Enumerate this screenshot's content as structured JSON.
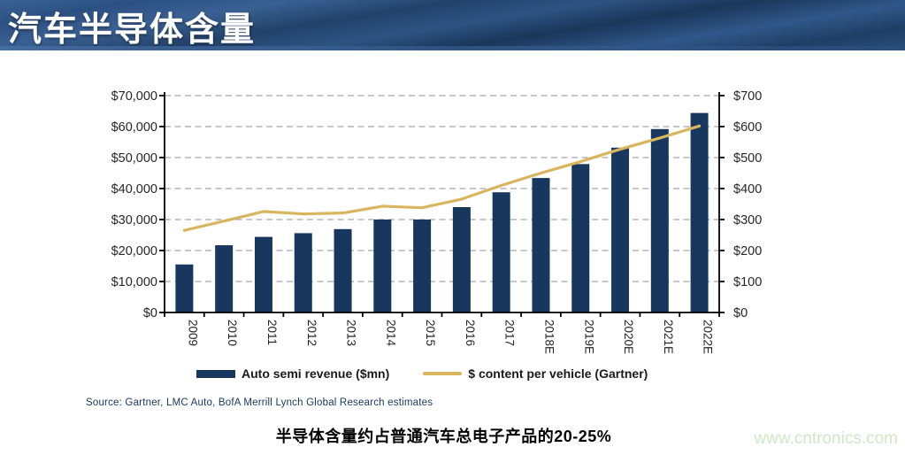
{
  "header": {
    "title": "汽车半导体含量"
  },
  "chart_data": {
    "type": "bar",
    "subtype": "bar+line combo",
    "categories": [
      "2009",
      "2010",
      "2011",
      "2012",
      "2013",
      "2014",
      "2015",
      "2016",
      "2017",
      "2018E",
      "2019E",
      "2020E",
      "2021E",
      "2022E"
    ],
    "series": [
      {
        "name": "Auto semi revenue ($mn)",
        "type": "bar",
        "axis": "left",
        "color": "#17375E",
        "values": [
          15500,
          21700,
          24400,
          25600,
          26900,
          30000,
          30000,
          34000,
          38800,
          43400,
          47900,
          53200,
          59200,
          64400
        ]
      },
      {
        "name": "$ content per vehicle (Gartner)",
        "type": "line",
        "axis": "right",
        "color": "#D9B55E",
        "values": [
          265,
          295,
          326,
          318,
          321,
          343,
          338,
          366,
          410,
          450,
          487,
          527,
          563,
          602
        ]
      }
    ],
    "left_axis": {
      "min": 0,
      "max": 70000,
      "step": 10000,
      "format": "$#,##0"
    },
    "right_axis": {
      "min": 0,
      "max": 700,
      "step": 100,
      "format": "$#,##0"
    },
    "grid": "horizontal dashed",
    "gridline_color": "#a6a6a6",
    "axis_color": "#000000",
    "tick_label_color": "#262626",
    "x_labels_rotated_deg": 90,
    "legend_position": "bottom"
  },
  "source": {
    "text": "Source:  Gartner, LMC Auto, BofA Merrill Lynch Global Research estimates"
  },
  "caption": {
    "text": "半导体含量约占普通汽车总电子产品的20-25%"
  },
  "watermark": {
    "text": "www.cntronics.com"
  },
  "colors": {
    "header_blue": "#2e5383",
    "bar_navy": "#17375E",
    "line_gold": "#D9B55E",
    "watermark_green": "#cfe9c5"
  }
}
